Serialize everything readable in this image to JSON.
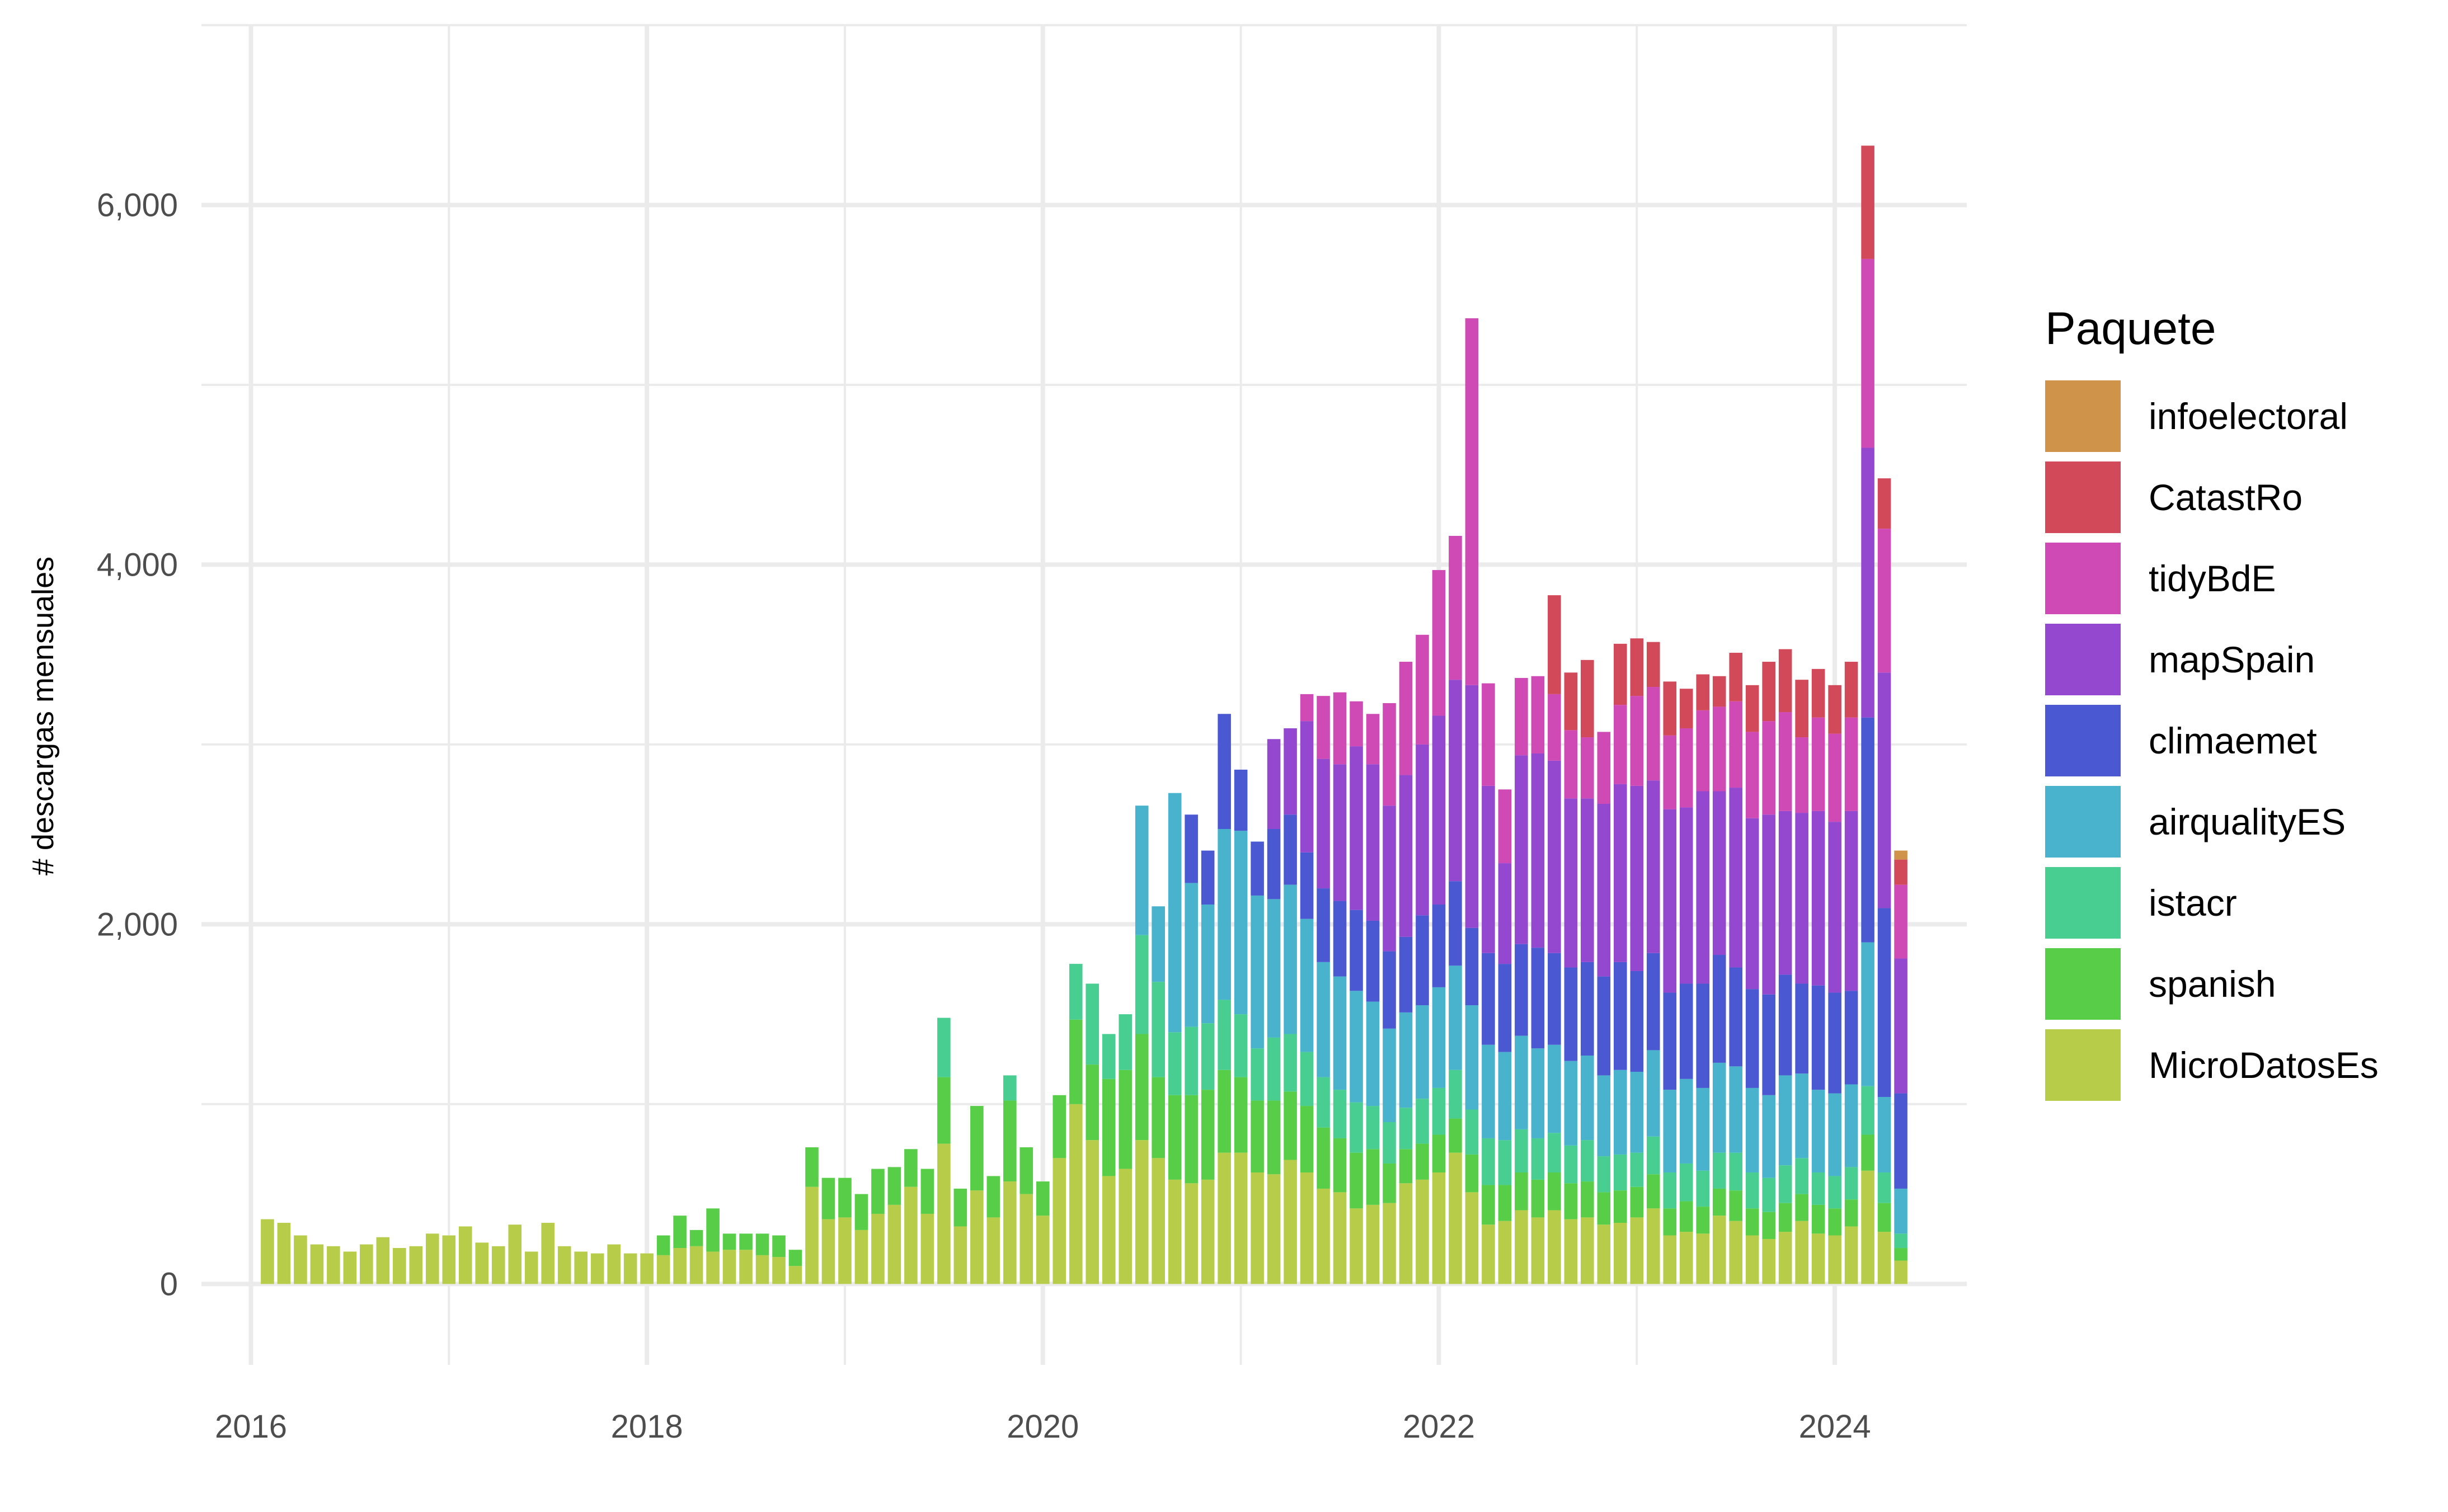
{
  "chart_data": {
    "type": "bar",
    "stacked": true,
    "xlabel": "",
    "ylabel": "# descargas mensuales",
    "ylim": [
      -450,
      7000
    ],
    "xlim": [
      "2015-10",
      "2024-09"
    ],
    "y_ticks": [
      0,
      2000,
      4000,
      6000
    ],
    "y_tick_labels": [
      "0",
      "2,000",
      "4,000",
      "6,000"
    ],
    "x_ticks": [
      "2016-01",
      "2018-01",
      "2020-01",
      "2022-01",
      "2024-01"
    ],
    "x_tick_labels": [
      "2016",
      "2018",
      "2020",
      "2022",
      "2024"
    ],
    "grid": true,
    "legend": {
      "title": "Paquete",
      "position": "right",
      "order": [
        "infoelectoral",
        "CatastRo",
        "tidyBdE",
        "mapSpain",
        "climaemet",
        "airqualityES",
        "istacr",
        "spanish",
        "MicroDatosEs"
      ]
    },
    "colors": {
      "MicroDatosEs": "#B7CC48",
      "spanish": "#58CE48",
      "istacr": "#49CE91",
      "airqualityES": "#49B2CC",
      "climaemet": "#4A58D1",
      "mapSpain": "#9348CF",
      "tidyBdE": "#D04AB5",
      "CatastRo": "#D24A59",
      "infoelectoral": "#CF934A"
    },
    "start_month": "2016-02",
    "series": [
      {
        "name": "MicroDatosEs",
        "values": [
          360,
          340,
          270,
          220,
          210,
          180,
          220,
          260,
          200,
          210,
          280,
          270,
          320,
          230,
          210,
          330,
          180,
          340,
          210,
          180,
          170,
          220,
          170,
          170,
          160,
          200,
          210,
          180,
          190,
          190,
          160,
          150,
          100,
          540,
          360,
          370,
          300,
          390,
          440,
          540,
          390,
          780,
          320,
          520,
          370,
          570,
          500,
          380,
          700,
          1000,
          800,
          600,
          640,
          800,
          700,
          580,
          560,
          580,
          730,
          730,
          620,
          610,
          690,
          620,
          530,
          510,
          420,
          440,
          450,
          560,
          580,
          620,
          730,
          510,
          330,
          350,
          410,
          370,
          410,
          360,
          370,
          330,
          340,
          370,
          420,
          270,
          290,
          280,
          380,
          350,
          270,
          250,
          290,
          350,
          280,
          270,
          320,
          630,
          290,
          130
        ]
      },
      {
        "name": "spanish",
        "values": [
          0,
          0,
          0,
          0,
          0,
          0,
          0,
          0,
          0,
          0,
          0,
          0,
          0,
          0,
          0,
          0,
          0,
          0,
          0,
          0,
          0,
          0,
          0,
          0,
          110,
          180,
          90,
          240,
          90,
          90,
          120,
          120,
          90,
          220,
          230,
          220,
          200,
          250,
          210,
          210,
          250,
          370,
          210,
          470,
          230,
          450,
          260,
          190,
          350,
          470,
          420,
          540,
          550,
          590,
          450,
          470,
          490,
          500,
          460,
          420,
          400,
          410,
          380,
          370,
          340,
          300,
          310,
          310,
          220,
          190,
          200,
          210,
          190,
          210,
          220,
          200,
          210,
          210,
          210,
          200,
          200,
          180,
          180,
          170,
          190,
          150,
          170,
          150,
          150,
          170,
          150,
          150,
          160,
          150,
          160,
          150,
          150,
          200,
          160,
          70
        ]
      },
      {
        "name": "istacr",
        "values": [
          0,
          0,
          0,
          0,
          0,
          0,
          0,
          0,
          0,
          0,
          0,
          0,
          0,
          0,
          0,
          0,
          0,
          0,
          0,
          0,
          0,
          0,
          0,
          0,
          0,
          0,
          0,
          0,
          0,
          0,
          0,
          0,
          0,
          0,
          0,
          0,
          0,
          0,
          0,
          0,
          0,
          330,
          0,
          0,
          0,
          140,
          0,
          0,
          0,
          310,
          450,
          250,
          310,
          550,
          530,
          350,
          380,
          370,
          390,
          350,
          290,
          350,
          320,
          300,
          280,
          270,
          280,
          240,
          230,
          230,
          250,
          260,
          270,
          250,
          260,
          250,
          240,
          230,
          220,
          210,
          230,
          200,
          200,
          190,
          210,
          200,
          210,
          200,
          200,
          210,
          200,
          190,
          210,
          200,
          180,
          180,
          180,
          270,
          170,
          80
        ]
      },
      {
        "name": "airqualityES",
        "values": [
          0,
          0,
          0,
          0,
          0,
          0,
          0,
          0,
          0,
          0,
          0,
          0,
          0,
          0,
          0,
          0,
          0,
          0,
          0,
          0,
          0,
          0,
          0,
          0,
          0,
          0,
          0,
          0,
          0,
          0,
          0,
          0,
          0,
          0,
          0,
          0,
          0,
          0,
          0,
          0,
          0,
          0,
          0,
          0,
          0,
          0,
          0,
          0,
          0,
          0,
          0,
          0,
          0,
          720,
          420,
          1330,
          800,
          660,
          950,
          1020,
          850,
          770,
          830,
          740,
          640,
          630,
          620,
          580,
          520,
          530,
          520,
          560,
          580,
          580,
          520,
          490,
          520,
          500,
          490,
          470,
          470,
          450,
          470,
          450,
          480,
          460,
          470,
          460,
          500,
          480,
          470,
          460,
          500,
          470,
          460,
          460,
          460,
          800,
          420,
          250
        ]
      },
      {
        "name": "climaemet",
        "values": [
          0,
          0,
          0,
          0,
          0,
          0,
          0,
          0,
          0,
          0,
          0,
          0,
          0,
          0,
          0,
          0,
          0,
          0,
          0,
          0,
          0,
          0,
          0,
          0,
          0,
          0,
          0,
          0,
          0,
          0,
          0,
          0,
          0,
          0,
          0,
          0,
          0,
          0,
          0,
          0,
          0,
          0,
          0,
          0,
          0,
          0,
          0,
          0,
          0,
          0,
          0,
          0,
          0,
          0,
          0,
          0,
          380,
          300,
          640,
          340,
          300,
          390,
          390,
          370,
          410,
          420,
          450,
          450,
          430,
          420,
          500,
          460,
          470,
          430,
          510,
          490,
          510,
          560,
          510,
          520,
          520,
          550,
          600,
          560,
          540,
          540,
          530,
          580,
          600,
          550,
          550,
          560,
          560,
          500,
          580,
          560,
          520,
          1250,
          1050,
          530
        ]
      },
      {
        "name": "mapSpain",
        "values": [
          0,
          0,
          0,
          0,
          0,
          0,
          0,
          0,
          0,
          0,
          0,
          0,
          0,
          0,
          0,
          0,
          0,
          0,
          0,
          0,
          0,
          0,
          0,
          0,
          0,
          0,
          0,
          0,
          0,
          0,
          0,
          0,
          0,
          0,
          0,
          0,
          0,
          0,
          0,
          0,
          0,
          0,
          0,
          0,
          0,
          0,
          0,
          0,
          0,
          0,
          0,
          0,
          0,
          0,
          0,
          0,
          0,
          0,
          0,
          0,
          0,
          500,
          480,
          730,
          720,
          760,
          910,
          870,
          810,
          900,
          950,
          1050,
          1120,
          1350,
          930,
          560,
          1050,
          1080,
          1070,
          940,
          910,
          960,
          990,
          1030,
          960,
          1020,
          980,
          1070,
          910,
          1000,
          950,
          1000,
          910,
          950,
          970,
          950,
          1000,
          1500,
          1310,
          750
        ]
      },
      {
        "name": "tidyBdE",
        "values": [
          0,
          0,
          0,
          0,
          0,
          0,
          0,
          0,
          0,
          0,
          0,
          0,
          0,
          0,
          0,
          0,
          0,
          0,
          0,
          0,
          0,
          0,
          0,
          0,
          0,
          0,
          0,
          0,
          0,
          0,
          0,
          0,
          0,
          0,
          0,
          0,
          0,
          0,
          0,
          0,
          0,
          0,
          0,
          0,
          0,
          0,
          0,
          0,
          0,
          0,
          0,
          0,
          0,
          0,
          0,
          0,
          0,
          0,
          0,
          0,
          0,
          0,
          0,
          150,
          350,
          400,
          250,
          280,
          570,
          630,
          610,
          810,
          800,
          2040,
          570,
          410,
          430,
          430,
          370,
          380,
          340,
          400,
          440,
          500,
          520,
          410,
          440,
          450,
          470,
          480,
          480,
          520,
          550,
          420,
          520,
          490,
          520,
          1050,
          800,
          410
        ]
      },
      {
        "name": "CatastRo",
        "values": [
          0,
          0,
          0,
          0,
          0,
          0,
          0,
          0,
          0,
          0,
          0,
          0,
          0,
          0,
          0,
          0,
          0,
          0,
          0,
          0,
          0,
          0,
          0,
          0,
          0,
          0,
          0,
          0,
          0,
          0,
          0,
          0,
          0,
          0,
          0,
          0,
          0,
          0,
          0,
          0,
          0,
          0,
          0,
          0,
          0,
          0,
          0,
          0,
          0,
          0,
          0,
          0,
          0,
          0,
          0,
          0,
          0,
          0,
          0,
          0,
          0,
          0,
          0,
          0,
          0,
          0,
          0,
          0,
          0,
          0,
          0,
          0,
          0,
          0,
          0,
          0,
          0,
          0,
          550,
          320,
          430,
          0,
          340,
          320,
          250,
          300,
          220,
          200,
          170,
          270,
          260,
          330,
          350,
          320,
          270,
          270,
          310,
          630,
          280,
          140
        ]
      },
      {
        "name": "infoelectoral",
        "values": [
          0,
          0,
          0,
          0,
          0,
          0,
          0,
          0,
          0,
          0,
          0,
          0,
          0,
          0,
          0,
          0,
          0,
          0,
          0,
          0,
          0,
          0,
          0,
          0,
          0,
          0,
          0,
          0,
          0,
          0,
          0,
          0,
          0,
          0,
          0,
          0,
          0,
          0,
          0,
          0,
          0,
          0,
          0,
          0,
          0,
          0,
          0,
          0,
          0,
          0,
          0,
          0,
          0,
          0,
          0,
          0,
          0,
          0,
          0,
          0,
          0,
          0,
          0,
          0,
          0,
          0,
          0,
          0,
          0,
          0,
          0,
          0,
          0,
          0,
          0,
          0,
          0,
          0,
          0,
          0,
          0,
          0,
          0,
          0,
          0,
          0,
          0,
          0,
          0,
          0,
          0,
          0,
          0,
          0,
          0,
          0,
          0,
          0,
          0,
          50
        ]
      }
    ]
  }
}
